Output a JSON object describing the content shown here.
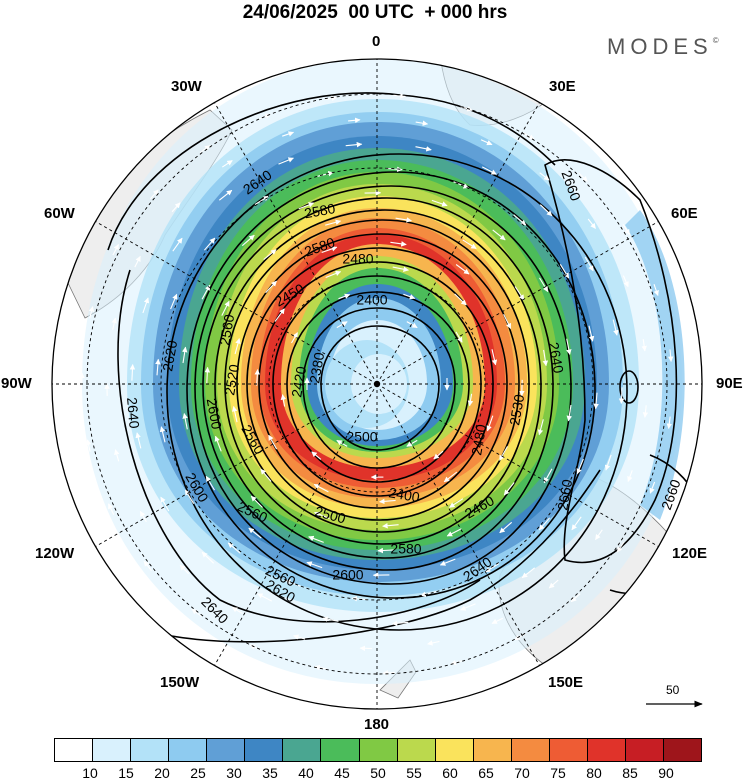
{
  "header": {
    "title": "24/06/2025  00 UTC  + 000 hrs",
    "brand": "MODES",
    "brand_mark": "©"
  },
  "map": {
    "projection": "polar stereographic, south pole centered",
    "longitude_labels": {
      "top": "0",
      "top_right": "30E",
      "right_upper": "60E",
      "right": "90E",
      "right_lower": "120E",
      "bottom_right": "150E",
      "bottom": "180",
      "bottom_left": "150W",
      "left_lower": "120W",
      "left": "90W",
      "left_upper": "60W",
      "top_left": "30W"
    },
    "contour_labels": [
      "2640",
      "2580",
      "2660",
      "2580",
      "2480",
      "2450",
      "2400",
      "2560",
      "2380",
      "2620",
      "2520",
      "2420",
      "2640",
      "2640",
      "2600",
      "2560",
      "2500",
      "2400",
      "2480",
      "2530",
      "2600",
      "2460",
      "2560",
      "2500",
      "2580",
      "2660",
      "2560",
      "2600",
      "2660",
      "2620",
      "2640",
      "2640"
    ],
    "reference_vector_label": "50",
    "colors": {
      "land": "#f0f0f0",
      "contour": "#000000",
      "wind_arrows": "#ffffff",
      "grid": "#000000"
    }
  },
  "colorbar": {
    "ticks": [
      "10",
      "15",
      "20",
      "25",
      "30",
      "35",
      "40",
      "45",
      "50",
      "55",
      "60",
      "65",
      "70",
      "75",
      "80",
      "85",
      "90"
    ],
    "colors": [
      "#ffffff",
      "#d9f1fd",
      "#b3e2f8",
      "#8ecbf0",
      "#609fd6",
      "#3e86c4",
      "#4aa691",
      "#4bbc5a",
      "#80c944",
      "#bbd94d",
      "#fae35c",
      "#f7b54e",
      "#f48b40",
      "#ee5c34",
      "#e0332a",
      "#c71e24",
      "#9e151b"
    ]
  }
}
